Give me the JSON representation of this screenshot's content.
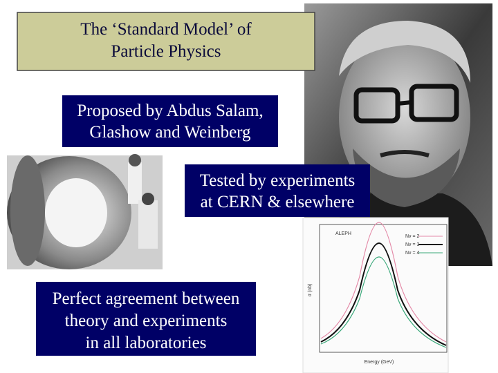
{
  "title": {
    "lines": [
      "The ‘Standard Model’ of",
      "Particle Physics"
    ]
  },
  "boxes": [
    {
      "lines": [
        "Proposed by Abdus Salam,",
        "Glashow and Weinberg"
      ]
    },
    {
      "lines": [
        "Tested by experiments",
        "at CERN & elsewhere"
      ]
    },
    {
      "lines": [
        "Perfect agreement between",
        "theory and experiments",
        "in all laboratories"
      ]
    }
  ],
  "plot": {
    "experiment": "ALEPH",
    "legend": [
      "Nν = 2",
      "Nν = 3",
      "Nν = 4"
    ],
    "x_label": "Energy (GeV)",
    "y_label": "σ (nb)"
  }
}
